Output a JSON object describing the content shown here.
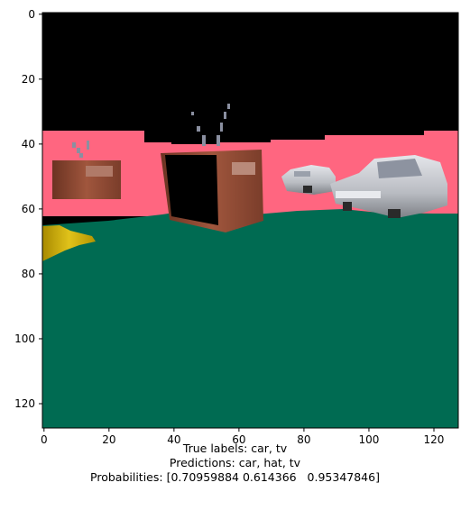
{
  "axes": {
    "x_ticks": [
      "0",
      "20",
      "40",
      "60",
      "80",
      "100",
      "120"
    ],
    "y_ticks": [
      "0",
      "20",
      "40",
      "60",
      "80",
      "100",
      "120"
    ]
  },
  "scene": {
    "colors": {
      "sky": "#000000",
      "wall": "#ff6680",
      "floor": "#006b52",
      "tv_body": "#8b4a34",
      "car": "#c8cbd0",
      "hat": "#c8a800"
    }
  },
  "caption": {
    "line1": "True labels: car, tv",
    "line2": "Predictions: car, hat, tv",
    "line3": "Probabilities: [0.70959884 0.614366   0.95347846]"
  }
}
